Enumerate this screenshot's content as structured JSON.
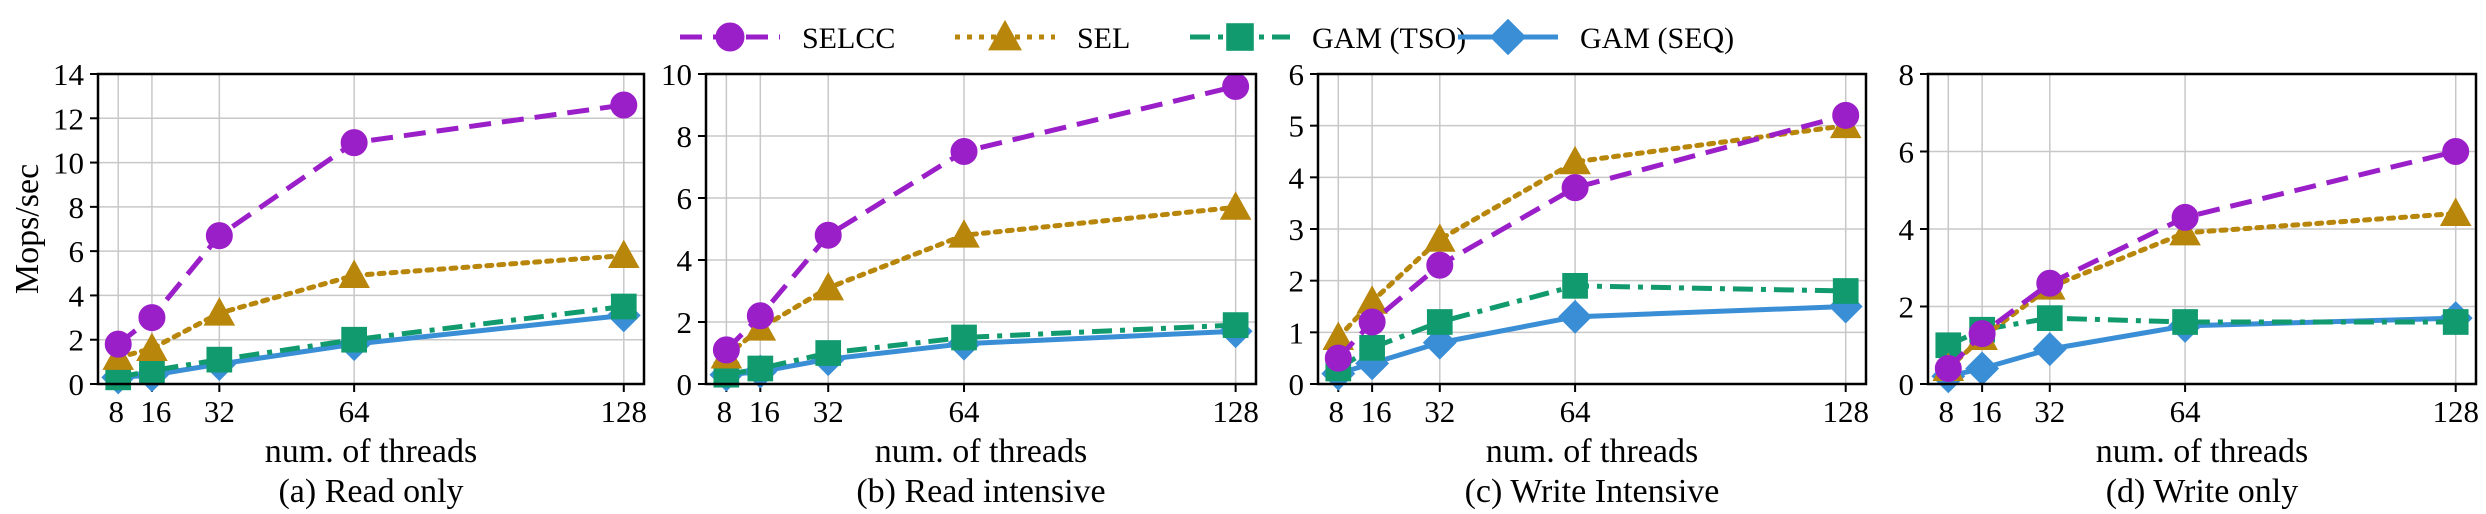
{
  "legend": [
    {
      "name": "SELCC",
      "color": "#9B1FC8",
      "dash": "dashed",
      "marker": "circle"
    },
    {
      "name": "SEL",
      "color": "#B8860B",
      "dash": "dotted",
      "marker": "triangle"
    },
    {
      "name": "GAM (TSO)",
      "color": "#119A6E",
      "dash": "dashdot",
      "marker": "square"
    },
    {
      "name": "GAM (SEQ)",
      "color": "#3A8ED6",
      "dash": "solid",
      "marker": "diamond"
    }
  ],
  "chart_data": [
    {
      "type": "line",
      "caption": "(a) Read only",
      "xlabel": "num. of threads",
      "ylabel": "Mops/sec",
      "x": [
        8,
        16,
        32,
        64,
        128
      ],
      "xticks": [
        8,
        16,
        32,
        64,
        128
      ],
      "ylim": [
        0,
        14
      ],
      "yticks": [
        0,
        2,
        4,
        6,
        8,
        10,
        12,
        14
      ],
      "grid": true,
      "series": [
        {
          "name": "SELCC",
          "values": [
            1.8,
            3.0,
            6.7,
            10.9,
            12.6
          ]
        },
        {
          "name": "SEL",
          "values": [
            1.2,
            1.6,
            3.2,
            4.9,
            5.8
          ]
        },
        {
          "name": "GAM (TSO)",
          "values": [
            0.3,
            0.6,
            1.1,
            2.0,
            3.5
          ]
        },
        {
          "name": "GAM (SEQ)",
          "values": [
            0.3,
            0.4,
            0.9,
            1.8,
            3.1
          ]
        }
      ]
    },
    {
      "type": "line",
      "caption": "(b) Read intensive",
      "xlabel": "num. of threads",
      "ylabel": "",
      "x": [
        8,
        16,
        32,
        64,
        128
      ],
      "xticks": [
        8,
        16,
        32,
        64,
        128
      ],
      "ylim": [
        0,
        10
      ],
      "yticks": [
        0,
        2,
        4,
        6,
        8,
        10
      ],
      "grid": true,
      "series": [
        {
          "name": "SELCC",
          "values": [
            1.1,
            2.2,
            4.8,
            7.5,
            9.6
          ]
        },
        {
          "name": "SEL",
          "values": [
            0.9,
            1.8,
            3.1,
            4.8,
            5.7
          ]
        },
        {
          "name": "GAM (TSO)",
          "values": [
            0.3,
            0.5,
            1.0,
            1.5,
            1.9
          ]
        },
        {
          "name": "GAM (SEQ)",
          "values": [
            0.3,
            0.4,
            0.8,
            1.3,
            1.7
          ]
        }
      ]
    },
    {
      "type": "line",
      "caption": "(c) Write Intensive",
      "xlabel": "num. of threads",
      "ylabel": "",
      "x": [
        8,
        16,
        32,
        64,
        128
      ],
      "xticks": [
        8,
        16,
        32,
        64,
        128
      ],
      "ylim": [
        0,
        6
      ],
      "yticks": [
        0,
        1,
        2,
        3,
        4,
        5,
        6
      ],
      "grid": true,
      "series": [
        {
          "name": "SELCC",
          "values": [
            0.5,
            1.2,
            2.3,
            3.8,
            5.2
          ]
        },
        {
          "name": "SEL",
          "values": [
            0.9,
            1.6,
            2.8,
            4.3,
            5.0
          ]
        },
        {
          "name": "GAM (TSO)",
          "values": [
            0.3,
            0.7,
            1.2,
            1.9,
            1.8
          ]
        },
        {
          "name": "GAM (SEQ)",
          "values": [
            0.2,
            0.4,
            0.8,
            1.3,
            1.5
          ]
        }
      ]
    },
    {
      "type": "line",
      "caption": "(d) Write only",
      "xlabel": "num. of threads",
      "ylabel": "",
      "x": [
        8,
        16,
        32,
        64,
        128
      ],
      "xticks": [
        8,
        16,
        32,
        64,
        128
      ],
      "ylim": [
        0,
        8
      ],
      "yticks": [
        0,
        2,
        4,
        6,
        8
      ],
      "grid": true,
      "series": [
        {
          "name": "SELCC",
          "values": [
            0.4,
            1.3,
            2.6,
            4.3,
            6.0
          ]
        },
        {
          "name": "SEL",
          "values": [
            0.4,
            1.2,
            2.5,
            3.9,
            4.4
          ]
        },
        {
          "name": "GAM (TSO)",
          "values": [
            1.0,
            1.4,
            1.7,
            1.6,
            1.6
          ]
        },
        {
          "name": "GAM (SEQ)",
          "values": [
            0.2,
            0.4,
            0.9,
            1.5,
            1.7
          ]
        }
      ]
    }
  ]
}
